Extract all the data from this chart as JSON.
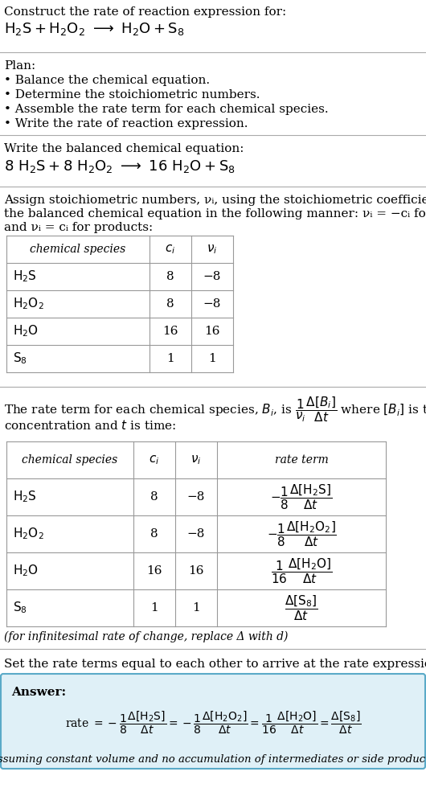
{
  "bg_color": "#ffffff",
  "text_color": "#000000",
  "title_line1": "Construct the rate of reaction expression for:",
  "plan_header": "Plan:",
  "plan_items": [
    "• Balance the chemical equation.",
    "• Determine the stoichiometric numbers.",
    "• Assemble the rate term for each chemical species.",
    "• Write the rate of reaction expression."
  ],
  "balanced_header": "Write the balanced chemical equation:",
  "stoich_header1": "Assign stoichiometric numbers, νᵢ, using the stoichiometric coefficients, cᵢ, from",
  "stoich_header2": "the balanced chemical equation in the following manner: νᵢ = −cᵢ for reactants",
  "stoich_header3": "and νᵢ = cᵢ for products:",
  "table1_rows": [
    [
      "H₂S",
      "8",
      "−8"
    ],
    [
      "H₂O₂",
      "8",
      "−8"
    ],
    [
      "H₂O",
      "16",
      "16"
    ],
    [
      "S₈",
      "1",
      "1"
    ]
  ],
  "table2_rows": [
    [
      "H₂S",
      "8",
      "−8"
    ],
    [
      "H₂O₂",
      "8",
      "−8"
    ],
    [
      "H₂O",
      "16",
      "16"
    ],
    [
      "S₈",
      "1",
      "1"
    ]
  ],
  "infinitesimal_note": "(for infinitesimal rate of change, replace Δ with d)",
  "set_rate_header": "Set the rate terms equal to each other to arrive at the rate expression:",
  "answer_box_color": "#dff0f7",
  "answer_border_color": "#5aaac8",
  "footnote": "(assuming constant volume and no accumulation of intermediates or side products)",
  "line_color": "#aaaaaa",
  "table_line_color": "#999999"
}
